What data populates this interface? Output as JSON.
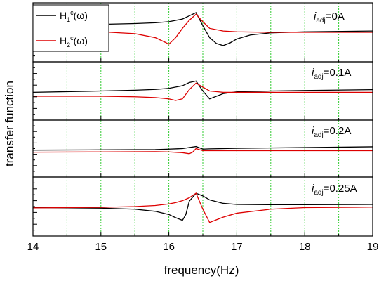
{
  "chart_data": {
    "type": "line",
    "layout": "4 vertically stacked panels sharing the x axis",
    "xlabel": "frequency(Hz)",
    "ylabel": "transfer function",
    "xlim": [
      14,
      19
    ],
    "xticks": [
      "14",
      "15",
      "16",
      "17",
      "18",
      "19"
    ],
    "grid": "vertical dashed green lines every 0.5 Hz",
    "legend": {
      "placement": "top-left of first panel",
      "entries": [
        {
          "base": "H",
          "sub": "1",
          "sup": "c",
          "arg": "(ω)",
          "color": "#000000"
        },
        {
          "base": "H",
          "sub": "2",
          "sup": "c",
          "arg": "(ω)",
          "color": "#dd0000"
        }
      ]
    },
    "series_colors": {
      "H1": "#000000",
      "H2": "#dd0000"
    },
    "panels": [
      {
        "label_var": "i",
        "label_sub": "adj",
        "label_value": "=0A",
        "ylim": [
          -1,
          1
        ],
        "series": [
          {
            "x": [
              14,
              15,
              15.5,
              15.8,
              16.0,
              16.2,
              16.3,
              16.4,
              16.5,
              16.6,
              16.7,
              16.8,
              16.9,
              17.0,
              17.2,
              17.5,
              18,
              19
            ],
            "y": [
              0.28,
              0.3,
              0.33,
              0.36,
              0.4,
              0.5,
              0.62,
              0.74,
              0.25,
              -0.2,
              -0.42,
              -0.5,
              -0.4,
              -0.25,
              -0.1,
              -0.02,
              0.02,
              0.05
            ]
          },
          {
            "x": [
              14,
              15,
              15.5,
              15.8,
              15.95,
              16.0,
              16.1,
              16.2,
              16.3,
              16.4,
              16.5,
              16.6,
              16.8,
              17.0,
              17.5,
              18,
              19
            ],
            "y": [
              0.05,
              0.02,
              -0.05,
              -0.2,
              -0.38,
              -0.45,
              -0.2,
              0.15,
              0.45,
              0.68,
              0.4,
              0.15,
              0.05,
              0.02,
              0.0,
              0.0,
              0.0
            ]
          }
        ]
      },
      {
        "label_var": "i",
        "label_sub": "adj",
        "label_value": "=0.1A",
        "ylim": [
          -1,
          1
        ],
        "series": [
          {
            "x": [
              14,
              15,
              15.5,
              15.8,
              16.0,
              16.2,
              16.3,
              16.4,
              16.5,
              16.6,
              16.7,
              16.8,
              17.0,
              17.5,
              18,
              19
            ],
            "y": [
              -0.05,
              0.0,
              0.03,
              0.06,
              0.1,
              0.2,
              0.32,
              0.38,
              0.0,
              -0.3,
              -0.2,
              -0.1,
              -0.03,
              0.0,
              0.02,
              0.05
            ]
          },
          {
            "x": [
              14,
              15,
              15.5,
              15.8,
              16.0,
              16.1,
              16.2,
              16.3,
              16.4,
              16.5,
              16.6,
              16.8,
              17.0,
              17.5,
              18,
              19
            ],
            "y": [
              -0.2,
              -0.2,
              -0.22,
              -0.25,
              -0.3,
              -0.36,
              -0.3,
              0.05,
              0.3,
              0.15,
              0.0,
              -0.05,
              -0.05,
              -0.05,
              -0.05,
              -0.05
            ]
          }
        ]
      },
      {
        "label_var": "i",
        "label_sub": "adj",
        "label_value": "=0.2A",
        "ylim": [
          -1,
          1
        ],
        "series": [
          {
            "x": [
              14,
              15,
              15.8,
              16.0,
              16.2,
              16.3,
              16.4,
              16.45,
              16.5,
              16.6,
              16.8,
              17.0,
              18,
              19
            ],
            "y": [
              -0.06,
              -0.05,
              -0.04,
              -0.02,
              0.0,
              0.04,
              0.08,
              0.03,
              -0.02,
              -0.01,
              0.0,
              0.01,
              0.04,
              0.07
            ]
          },
          {
            "x": [
              14,
              15,
              15.8,
              16.0,
              16.2,
              16.3,
              16.35,
              16.4,
              16.45,
              16.5,
              16.6,
              17.0,
              18,
              19
            ],
            "y": [
              -0.14,
              -0.13,
              -0.12,
              -0.13,
              -0.16,
              -0.2,
              -0.14,
              0.0,
              -0.04,
              -0.08,
              -0.08,
              -0.08,
              -0.08,
              -0.08
            ]
          }
        ]
      },
      {
        "label_var": "i",
        "label_sub": "adj",
        "label_value": "=0.25A",
        "ylim": [
          -1,
          1
        ],
        "series": [
          {
            "x": [
              14,
              15,
              15.5,
              15.8,
              16.0,
              16.1,
              16.2,
              16.25,
              16.3,
              16.4,
              16.5,
              16.6,
              16.8,
              17.0,
              17.5,
              18,
              19
            ],
            "y": [
              -0.04,
              -0.06,
              -0.1,
              -0.18,
              -0.3,
              -0.42,
              -0.52,
              -0.3,
              0.2,
              0.5,
              0.4,
              0.25,
              0.12,
              0.08,
              0.07,
              0.07,
              0.08
            ]
          },
          {
            "x": [
              14,
              15,
              15.5,
              15.8,
              16.0,
              16.1,
              16.2,
              16.3,
              16.4,
              16.5,
              16.6,
              16.7,
              16.8,
              17.0,
              17.5,
              18,
              19
            ],
            "y": [
              -0.05,
              -0.03,
              0.0,
              0.04,
              0.1,
              0.15,
              0.22,
              0.33,
              0.5,
              -0.1,
              -0.6,
              -0.5,
              -0.4,
              -0.25,
              -0.1,
              -0.04,
              -0.02
            ]
          }
        ]
      }
    ]
  }
}
